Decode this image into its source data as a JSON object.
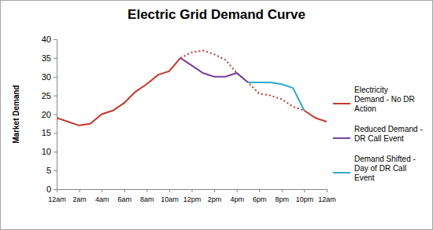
{
  "chart_data": {
    "type": "line",
    "title": "Electric Grid Demand Curve",
    "y_label": "Market Demand",
    "categories": [
      "12am",
      null,
      "2am",
      null,
      "4am",
      null,
      "6am",
      null,
      "8am",
      null,
      "10am",
      null,
      "12pm",
      null,
      "2pm",
      null,
      "4pm",
      null,
      "6pm",
      null,
      "8pm",
      null,
      "10pm",
      null,
      "12am"
    ],
    "series": [
      {
        "name": "Electricity Demand - No DR Action",
        "color": "#c0392b",
        "line_style": "solid",
        "values": [
          19,
          18,
          17,
          17.5,
          20,
          21,
          23,
          26,
          28,
          30.5,
          31.5,
          35,
          36.5,
          37,
          36,
          34.5,
          31,
          28.5,
          25.5,
          25,
          24,
          22,
          21,
          19,
          18
        ]
      },
      {
        "name": "Reduced Demand - DR Call Event",
        "color": "#7b3fa0",
        "line_style": "solid",
        "values": [
          null,
          null,
          null,
          null,
          null,
          null,
          null,
          null,
          null,
          null,
          null,
          35,
          33,
          31,
          30,
          30,
          31,
          28.5,
          null,
          null,
          null,
          null,
          null,
          null,
          null
        ]
      },
      {
        "name": "Demand Shifted - Day of DR Call Event",
        "color": "#31a9c9",
        "line_style": "solid",
        "values": [
          null,
          null,
          null,
          null,
          null,
          null,
          null,
          null,
          null,
          null,
          null,
          null,
          null,
          null,
          null,
          null,
          null,
          28.5,
          28.5,
          28.5,
          28,
          27,
          21,
          null,
          null
        ]
      }
    ],
    "ylim": [
      0,
      40
    ],
    "yticks": [
      0,
      5,
      10,
      15,
      20,
      25,
      30,
      35,
      40
    ],
    "grid": false,
    "legend": "right"
  }
}
